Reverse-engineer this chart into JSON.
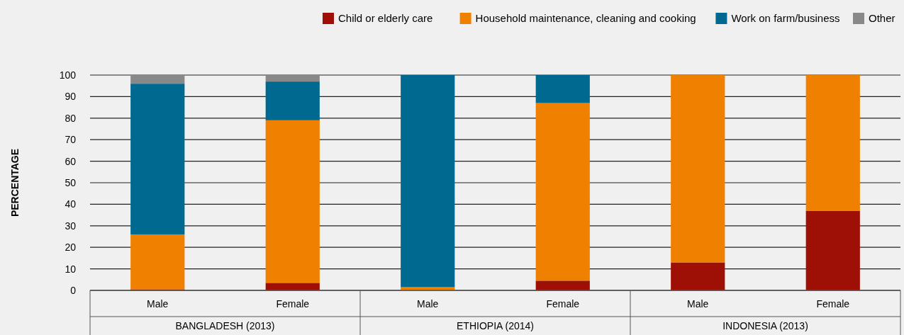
{
  "chart_data": {
    "type": "bar",
    "stacked": true,
    "ylabel": "PERCENTAGE",
    "categories": [
      "Male",
      "Female",
      "Male",
      "Female",
      "Male",
      "Female"
    ],
    "annotations": [
      "BANGLADESH (2013)",
      "ETHIOPIA (2014)",
      "INDONESIA (2013)"
    ],
    "series": [
      {
        "name": "Child or elderly care",
        "color": "#9e1006",
        "values": [
          0.5,
          3.5,
          0,
          4.5,
          13,
          37
        ]
      },
      {
        "name": "Household maintenance, cleaning and cooking",
        "color": "#f08000",
        "values": [
          25.5,
          75.5,
          1.5,
          82.5,
          87,
          63
        ]
      },
      {
        "name": "Work on farm/business",
        "color": "#006990",
        "values": [
          70,
          18,
          98.5,
          13,
          0,
          0
        ]
      },
      {
        "name": "Other",
        "color": "#898989",
        "values": [
          4,
          3,
          0,
          0,
          0,
          0
        ]
      }
    ],
    "ylim": [
      0,
      100
    ],
    "yticks": [
      0,
      10,
      20,
      30,
      40,
      50,
      60,
      70,
      80,
      90,
      100
    ],
    "grid": "y",
    "legend": "top right"
  }
}
